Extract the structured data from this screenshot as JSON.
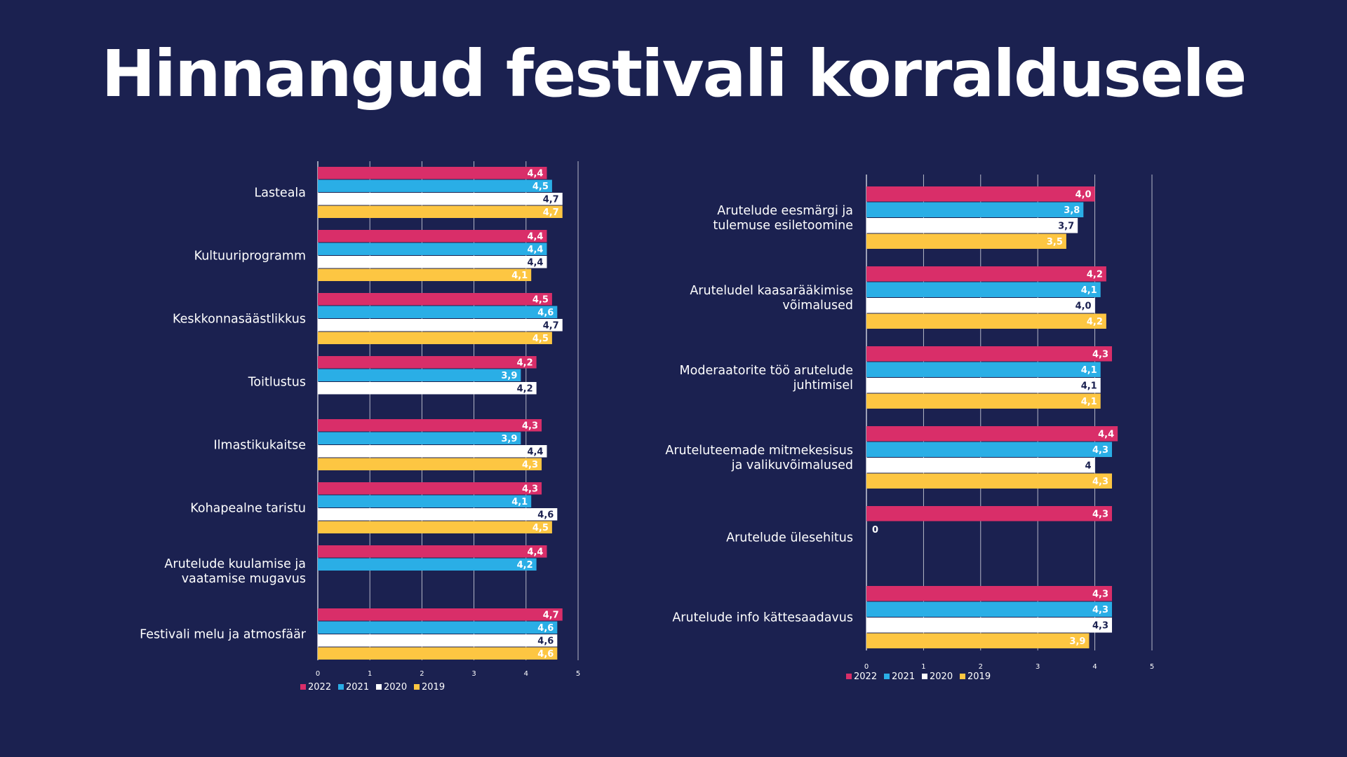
{
  "title": "Hinnangud festivali korraldusele",
  "colors": {
    "background": "#1b2150",
    "2022": "#d92e69",
    "2021": "#2aaee6",
    "2020": "#ffffff",
    "2019": "#fdc642",
    "gridline": "#ffffff"
  },
  "chart_data": [
    {
      "type": "bar",
      "orientation": "horizontal",
      "xlim": [
        0,
        5
      ],
      "ticks": [
        "0",
        "1",
        "2",
        "3",
        "4",
        "5"
      ],
      "legend": [
        "2022",
        "2021",
        "2020",
        "2019"
      ],
      "legend_position": "bottom-left",
      "categories": [
        {
          "label": [
            "Lasteala"
          ],
          "values": [
            {
              "series": "2022",
              "value": 4.4,
              "label": "4,4"
            },
            {
              "series": "2021",
              "value": 4.5,
              "label": "4,5"
            },
            {
              "series": "2020",
              "value": 4.7,
              "label": "4,7"
            },
            {
              "series": "2019",
              "value": 4.7,
              "label": "4,7"
            }
          ]
        },
        {
          "label": [
            "Kultuuriprogramm"
          ],
          "values": [
            {
              "series": "2022",
              "value": 4.4,
              "label": "4,4"
            },
            {
              "series": "2021",
              "value": 4.4,
              "label": "4,4"
            },
            {
              "series": "2020",
              "value": 4.4,
              "label": "4,4"
            },
            {
              "series": "2019",
              "value": 4.1,
              "label": "4,1"
            }
          ]
        },
        {
          "label": [
            "Keskkonnasäästlikkus"
          ],
          "values": [
            {
              "series": "2022",
              "value": 4.5,
              "label": "4,5"
            },
            {
              "series": "2021",
              "value": 4.6,
              "label": "4,6"
            },
            {
              "series": "2020",
              "value": 4.7,
              "label": "4,7"
            },
            {
              "series": "2019",
              "value": 4.5,
              "label": "4,5"
            }
          ]
        },
        {
          "label": [
            "Toitlustus"
          ],
          "values": [
            {
              "series": "2022",
              "value": 4.2,
              "label": "4,2"
            },
            {
              "series": "2021",
              "value": 3.9,
              "label": "3,9"
            },
            {
              "series": "2020",
              "value": 4.2,
              "label": "4,2"
            }
          ]
        },
        {
          "label": [
            "Ilmastikukaitse"
          ],
          "values": [
            {
              "series": "2022",
              "value": 4.3,
              "label": "4,3"
            },
            {
              "series": "2021",
              "value": 3.9,
              "label": "3,9"
            },
            {
              "series": "2020",
              "value": 4.4,
              "label": "4,4"
            },
            {
              "series": "2019",
              "value": 4.3,
              "label": "4,3"
            }
          ]
        },
        {
          "label": [
            "Kohapealne taristu"
          ],
          "values": [
            {
              "series": "2022",
              "value": 4.3,
              "label": "4,3"
            },
            {
              "series": "2021",
              "value": 4.1,
              "label": "4,1"
            },
            {
              "series": "2020",
              "value": 4.6,
              "label": "4,6"
            },
            {
              "series": "2019",
              "value": 4.5,
              "label": "4,5"
            }
          ]
        },
        {
          "label": [
            "Arutelude kuulamise ja",
            "vaatamise mugavus"
          ],
          "values": [
            {
              "series": "2022",
              "value": 4.4,
              "label": "4,4"
            },
            {
              "series": "2021",
              "value": 4.2,
              "label": "4,2"
            }
          ]
        },
        {
          "label": [
            "Festivali melu ja atmosfäär"
          ],
          "values": [
            {
              "series": "2022",
              "value": 4.7,
              "label": "4,7"
            },
            {
              "series": "2021",
              "value": 4.6,
              "label": "4,6"
            },
            {
              "series": "2020",
              "value": 4.6,
              "label": "4,6"
            },
            {
              "series": "2019",
              "value": 4.6,
              "label": "4,6"
            }
          ]
        }
      ]
    },
    {
      "type": "bar",
      "orientation": "horizontal",
      "xlim": [
        0,
        5
      ],
      "ticks": [
        "0",
        "1",
        "2",
        "3",
        "4",
        "5"
      ],
      "legend": [
        "2022",
        "2021",
        "2020",
        "2019"
      ],
      "legend_position": "bottom-left",
      "categories": [
        {
          "label": [
            "Arutelude eesmärgi ja",
            "tulemuse esiletoomine"
          ],
          "values": [
            {
              "series": "2022",
              "value": 4.0,
              "label": "4,0"
            },
            {
              "series": "2021",
              "value": 3.8,
              "label": "3,8"
            },
            {
              "series": "2020",
              "value": 3.7,
              "label": "3,7"
            },
            {
              "series": "2019",
              "value": 3.5,
              "label": "3,5"
            }
          ]
        },
        {
          "label": [
            "Aruteludel kaasarääkimise",
            "võimalused"
          ],
          "values": [
            {
              "series": "2022",
              "value": 4.2,
              "label": "4,2"
            },
            {
              "series": "2021",
              "value": 4.1,
              "label": "4,1"
            },
            {
              "series": "2020",
              "value": 4.0,
              "label": "4,0"
            },
            {
              "series": "2019",
              "value": 4.2,
              "label": "4,2"
            }
          ]
        },
        {
          "label": [
            "Moderaatorite töö arutelude",
            "juhtimisel"
          ],
          "values": [
            {
              "series": "2022",
              "value": 4.3,
              "label": "4,3"
            },
            {
              "series": "2021",
              "value": 4.1,
              "label": "4,1"
            },
            {
              "series": "2020",
              "value": 4.1,
              "label": "4,1"
            },
            {
              "series": "2019",
              "value": 4.1,
              "label": "4,1"
            }
          ]
        },
        {
          "label": [
            "Aruteluteemade mitmekesisus",
            "ja valikuvõimalused"
          ],
          "values": [
            {
              "series": "2022",
              "value": 4.4,
              "label": "4,4"
            },
            {
              "series": "2021",
              "value": 4.3,
              "label": "4,3"
            },
            {
              "series": "2020",
              "value": 4.0,
              "label": "4"
            },
            {
              "series": "2019",
              "value": 4.3,
              "label": "4,3"
            }
          ]
        },
        {
          "label": [
            "Arutelude ülesehitus"
          ],
          "values": [
            {
              "series": "2022",
              "value": 4.3,
              "label": "4,3"
            },
            {
              "series": "2021",
              "value": 0,
              "label": "0"
            }
          ]
        },
        {
          "label": [
            "Arutelude info kättesaadavus"
          ],
          "values": [
            {
              "series": "2022",
              "value": 4.3,
              "label": "4,3"
            },
            {
              "series": "2021",
              "value": 4.3,
              "label": "4,3"
            },
            {
              "series": "2020",
              "value": 4.3,
              "label": "4,3"
            },
            {
              "series": "2019",
              "value": 3.9,
              "label": "3,9"
            }
          ]
        }
      ]
    }
  ]
}
